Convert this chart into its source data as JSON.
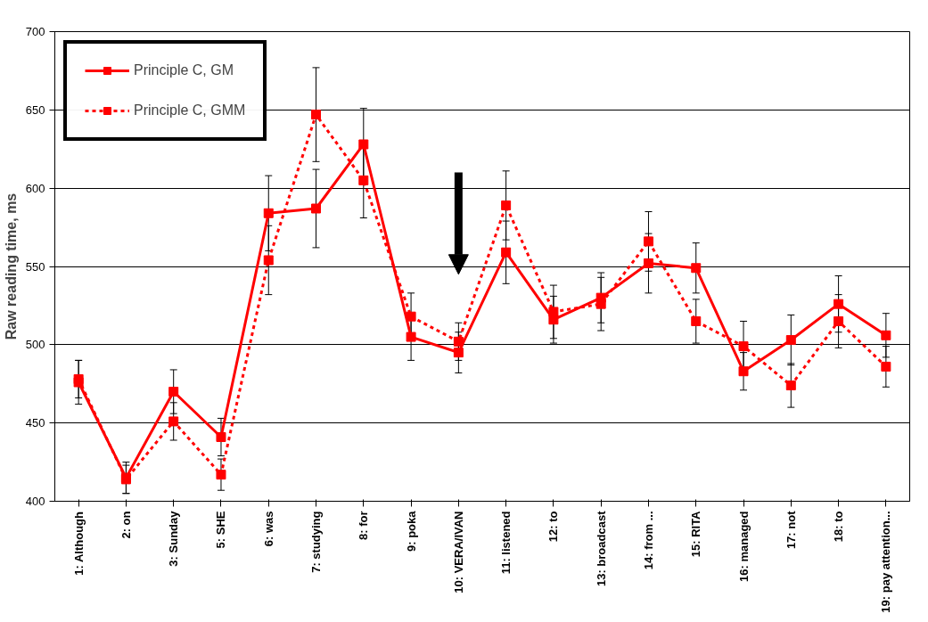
{
  "chart_data": {
    "type": "line",
    "ylabel": "Raw reading time, ms",
    "categories": [
      "1: Although",
      "2: on",
      "3: Sunday",
      "5: SHE",
      "6: was",
      "7: studying",
      "8: for",
      "9: poka",
      "10: VERA/IVAN",
      "11: listened",
      "12: to",
      "13: broadcast",
      "14: from ...",
      "15: RITA",
      "16: managed",
      "17: not",
      "18: to",
      "19: pay attention..."
    ],
    "series": [
      {
        "name": "Principle C, GM",
        "color": "#ff0000",
        "line_style": "solid",
        "values": [
          476,
          415,
          470,
          441,
          584,
          587,
          628,
          505,
          495,
          559,
          516,
          530,
          552,
          549,
          483,
          503,
          526,
          506
        ],
        "errors": [
          14,
          10,
          14,
          12,
          24,
          25,
          23,
          15,
          13,
          20,
          15,
          16,
          19,
          16,
          12,
          16,
          18,
          14
        ]
      },
      {
        "name": "Principle C, GMM",
        "color": "#ff0000",
        "line_style": "dashed",
        "values": [
          478,
          414,
          451,
          417,
          554,
          647,
          605,
          518,
          502,
          589,
          521,
          526,
          566,
          515,
          499,
          474,
          515,
          486
        ],
        "errors": [
          12,
          9,
          12,
          10,
          22,
          30,
          24,
          15,
          12,
          22,
          17,
          17,
          19,
          14,
          16,
          14,
          17,
          13
        ]
      }
    ],
    "ylim": [
      400,
      700
    ],
    "yticks": [
      400,
      450,
      500,
      550,
      600,
      650,
      700
    ],
    "grid": "y",
    "legend": "top left",
    "marker": "square"
  }
}
